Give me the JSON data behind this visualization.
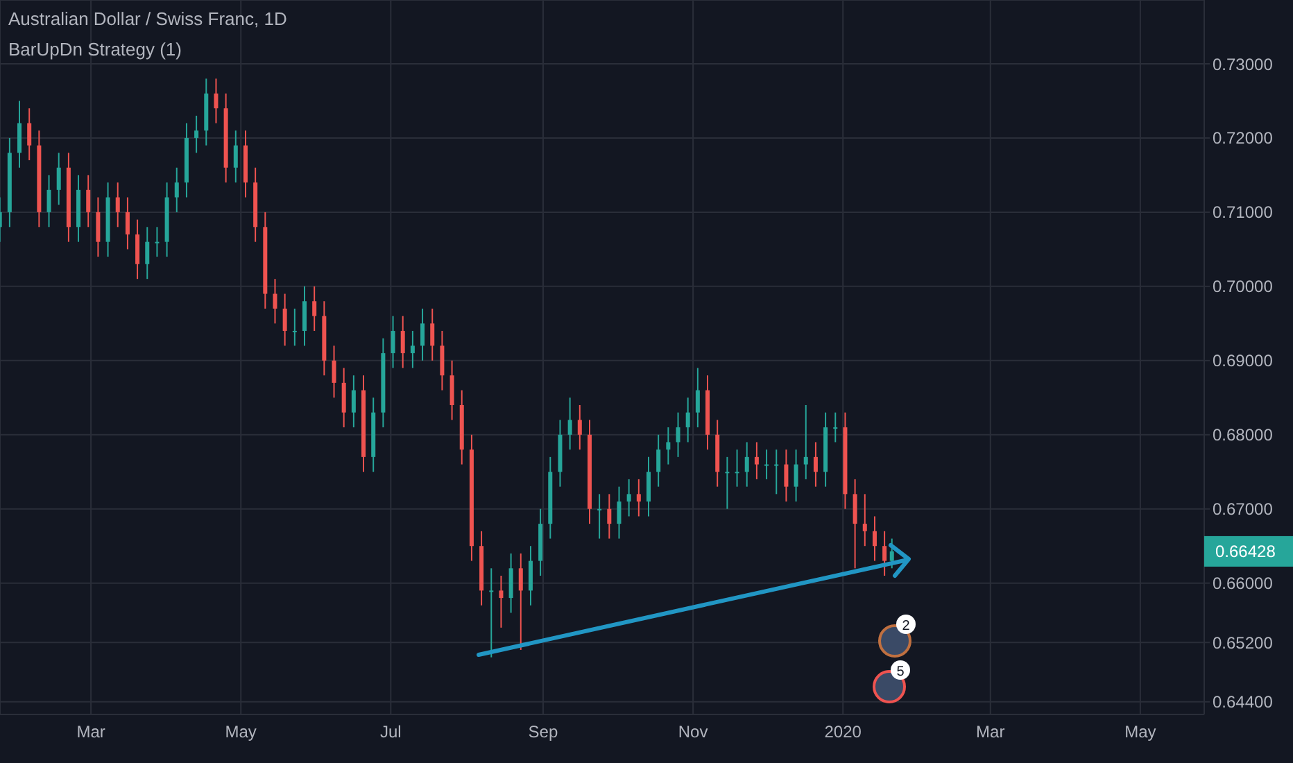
{
  "chart_data": {
    "type": "candlestick",
    "title": "Australian Dollar / Swiss Franc, 1D",
    "subtitle": "BarUpDn Strategy (1)",
    "x": [
      "2019-01-23",
      "2019-01-27",
      "2019-01-31",
      "2019-02-04",
      "2019-02-08",
      "2019-02-12",
      "2019-02-16",
      "2019-02-20",
      "2019-02-24",
      "2019-02-28",
      "2019-03-04",
      "2019-03-08",
      "2019-03-12",
      "2019-03-16",
      "2019-03-20",
      "2019-03-24",
      "2019-03-28",
      "2019-04-01",
      "2019-04-05",
      "2019-04-09",
      "2019-04-13",
      "2019-04-17",
      "2019-04-21",
      "2019-04-25",
      "2019-04-29",
      "2019-05-03",
      "2019-05-07",
      "2019-05-11",
      "2019-05-15",
      "2019-05-19",
      "2019-05-23",
      "2019-05-27",
      "2019-05-31",
      "2019-06-04",
      "2019-06-08",
      "2019-06-12",
      "2019-06-16",
      "2019-06-20",
      "2019-06-24",
      "2019-06-28",
      "2019-07-02",
      "2019-07-06",
      "2019-07-10",
      "2019-07-14",
      "2019-07-18",
      "2019-07-22",
      "2019-07-26",
      "2019-07-30",
      "2019-08-03",
      "2019-08-07",
      "2019-08-11",
      "2019-08-15",
      "2019-08-19",
      "2019-08-23",
      "2019-08-27",
      "2019-08-31",
      "2019-09-04",
      "2019-09-08",
      "2019-09-12",
      "2019-09-16",
      "2019-09-20",
      "2019-09-24",
      "2019-09-28",
      "2019-10-02",
      "2019-10-06",
      "2019-10-10",
      "2019-10-14",
      "2019-10-18",
      "2019-10-22",
      "2019-10-26",
      "2019-10-30",
      "2019-11-03",
      "2019-11-07",
      "2019-11-11",
      "2019-11-15",
      "2019-11-19",
      "2019-11-23",
      "2019-11-27",
      "2019-12-01",
      "2019-12-05",
      "2019-12-09",
      "2019-12-13",
      "2019-12-17",
      "2019-12-21",
      "2019-12-25",
      "2019-12-29",
      "2020-01-02",
      "2020-01-06",
      "2020-01-10",
      "2020-01-14",
      "2020-01-18",
      "2020-01-21"
    ],
    "ohlc": [
      [
        0.708,
        0.712,
        0.706,
        0.71
      ],
      [
        0.71,
        0.72,
        0.708,
        0.718
      ],
      [
        0.718,
        0.725,
        0.716,
        0.722
      ],
      [
        0.722,
        0.724,
        0.717,
        0.719
      ],
      [
        0.719,
        0.721,
        0.708,
        0.71
      ],
      [
        0.71,
        0.715,
        0.708,
        0.713
      ],
      [
        0.713,
        0.718,
        0.711,
        0.716
      ],
      [
        0.716,
        0.718,
        0.706,
        0.708
      ],
      [
        0.708,
        0.715,
        0.706,
        0.713
      ],
      [
        0.713,
        0.715,
        0.708,
        0.71
      ],
      [
        0.71,
        0.712,
        0.704,
        0.706
      ],
      [
        0.706,
        0.714,
        0.704,
        0.712
      ],
      [
        0.712,
        0.714,
        0.708,
        0.71
      ],
      [
        0.71,
        0.712,
        0.705,
        0.707
      ],
      [
        0.707,
        0.709,
        0.701,
        0.703
      ],
      [
        0.703,
        0.708,
        0.701,
        0.706
      ],
      [
        0.706,
        0.708,
        0.704,
        0.706
      ],
      [
        0.706,
        0.714,
        0.704,
        0.712
      ],
      [
        0.712,
        0.716,
        0.71,
        0.714
      ],
      [
        0.714,
        0.722,
        0.712,
        0.72
      ],
      [
        0.72,
        0.723,
        0.718,
        0.721
      ],
      [
        0.721,
        0.728,
        0.719,
        0.726
      ],
      [
        0.726,
        0.728,
        0.722,
        0.724
      ],
      [
        0.724,
        0.726,
        0.714,
        0.716
      ],
      [
        0.716,
        0.721,
        0.714,
        0.719
      ],
      [
        0.719,
        0.721,
        0.712,
        0.714
      ],
      [
        0.714,
        0.716,
        0.706,
        0.708
      ],
      [
        0.708,
        0.71,
        0.697,
        0.699
      ],
      [
        0.699,
        0.701,
        0.695,
        0.697
      ],
      [
        0.697,
        0.699,
        0.692,
        0.694
      ],
      [
        0.694,
        0.697,
        0.692,
        0.694
      ],
      [
        0.694,
        0.7,
        0.692,
        0.698
      ],
      [
        0.698,
        0.7,
        0.694,
        0.696
      ],
      [
        0.696,
        0.698,
        0.688,
        0.69
      ],
      [
        0.69,
        0.692,
        0.685,
        0.687
      ],
      [
        0.687,
        0.689,
        0.681,
        0.683
      ],
      [
        0.683,
        0.688,
        0.681,
        0.686
      ],
      [
        0.686,
        0.688,
        0.675,
        0.677
      ],
      [
        0.677,
        0.685,
        0.675,
        0.683
      ],
      [
        0.683,
        0.693,
        0.681,
        0.691
      ],
      [
        0.691,
        0.696,
        0.689,
        0.694
      ],
      [
        0.694,
        0.696,
        0.689,
        0.691
      ],
      [
        0.691,
        0.694,
        0.689,
        0.692
      ],
      [
        0.692,
        0.697,
        0.69,
        0.695
      ],
      [
        0.695,
        0.697,
        0.69,
        0.692
      ],
      [
        0.692,
        0.694,
        0.686,
        0.688
      ],
      [
        0.688,
        0.69,
        0.682,
        0.684
      ],
      [
        0.684,
        0.686,
        0.676,
        0.678
      ],
      [
        0.678,
        0.68,
        0.663,
        0.665
      ],
      [
        0.665,
        0.667,
        0.657,
        0.659
      ],
      [
        0.659,
        0.662,
        0.65,
        0.659
      ],
      [
        0.659,
        0.661,
        0.654,
        0.658
      ],
      [
        0.658,
        0.664,
        0.656,
        0.662
      ],
      [
        0.662,
        0.664,
        0.651,
        0.659
      ],
      [
        0.659,
        0.665,
        0.657,
        0.663
      ],
      [
        0.663,
        0.67,
        0.661,
        0.668
      ],
      [
        0.668,
        0.677,
        0.666,
        0.675
      ],
      [
        0.675,
        0.682,
        0.673,
        0.68
      ],
      [
        0.68,
        0.685,
        0.678,
        0.682
      ],
      [
        0.682,
        0.684,
        0.678,
        0.68
      ],
      [
        0.68,
        0.682,
        0.668,
        0.67
      ],
      [
        0.67,
        0.672,
        0.666,
        0.67
      ],
      [
        0.67,
        0.672,
        0.666,
        0.668
      ],
      [
        0.668,
        0.673,
        0.666,
        0.671
      ],
      [
        0.671,
        0.674,
        0.669,
        0.672
      ],
      [
        0.672,
        0.674,
        0.669,
        0.671
      ],
      [
        0.671,
        0.677,
        0.669,
        0.675
      ],
      [
        0.675,
        0.68,
        0.673,
        0.678
      ],
      [
        0.678,
        0.681,
        0.676,
        0.679
      ],
      [
        0.679,
        0.683,
        0.677,
        0.681
      ],
      [
        0.681,
        0.685,
        0.679,
        0.683
      ],
      [
        0.683,
        0.689,
        0.681,
        0.686
      ],
      [
        0.686,
        0.688,
        0.678,
        0.68
      ],
      [
        0.68,
        0.682,
        0.673,
        0.675
      ],
      [
        0.675,
        0.677,
        0.67,
        0.675
      ],
      [
        0.675,
        0.678,
        0.673,
        0.675
      ],
      [
        0.675,
        0.679,
        0.673,
        0.677
      ],
      [
        0.677,
        0.679,
        0.674,
        0.676
      ],
      [
        0.676,
        0.678,
        0.674,
        0.676
      ],
      [
        0.676,
        0.678,
        0.672,
        0.676
      ],
      [
        0.676,
        0.678,
        0.671,
        0.673
      ],
      [
        0.673,
        0.678,
        0.671,
        0.676
      ],
      [
        0.676,
        0.684,
        0.674,
        0.677
      ],
      [
        0.677,
        0.679,
        0.673,
        0.675
      ],
      [
        0.675,
        0.683,
        0.673,
        0.681
      ],
      [
        0.681,
        0.683,
        0.679,
        0.681
      ],
      [
        0.681,
        0.683,
        0.67,
        0.672
      ],
      [
        0.672,
        0.674,
        0.662,
        0.668
      ],
      [
        0.668,
        0.672,
        0.665,
        0.667
      ],
      [
        0.667,
        0.669,
        0.663,
        0.665
      ],
      [
        0.665,
        0.667,
        0.661,
        0.663
      ],
      [
        0.663,
        0.666,
        0.662,
        0.66428
      ]
    ],
    "xlim": [
      "2019-01-23",
      "2020-05-27"
    ],
    "xticks": [
      {
        "value": "2019-03-01",
        "label": "Mar"
      },
      {
        "value": "2019-05-01",
        "label": "May"
      },
      {
        "value": "2019-07-01",
        "label": "Jul"
      },
      {
        "value": "2019-09-01",
        "label": "Sep"
      },
      {
        "value": "2019-11-01",
        "label": "Nov"
      },
      {
        "value": "2020-01-01",
        "label": "2020"
      },
      {
        "value": "2020-03-01",
        "label": "Mar"
      },
      {
        "value": "2020-05-01",
        "label": "May"
      }
    ],
    "ylim": [
      0.6423,
      0.7386
    ],
    "yticks": [
      {
        "value": 0.644,
        "label": "0.64400"
      },
      {
        "value": 0.652,
        "label": "0.65200"
      },
      {
        "value": 0.66,
        "label": "0.66000"
      },
      {
        "value": 0.67,
        "label": "0.67000"
      },
      {
        "value": 0.68,
        "label": "0.68000"
      },
      {
        "value": 0.69,
        "label": "0.69000"
      },
      {
        "value": 0.7,
        "label": "0.70000"
      },
      {
        "value": 0.71,
        "label": "0.71000"
      },
      {
        "value": 0.72,
        "label": "0.72000"
      },
      {
        "value": 0.73,
        "label": "0.73000"
      }
    ],
    "grid": true,
    "annotations": [
      "0.66428",
      "2",
      "5"
    ]
  }
}
